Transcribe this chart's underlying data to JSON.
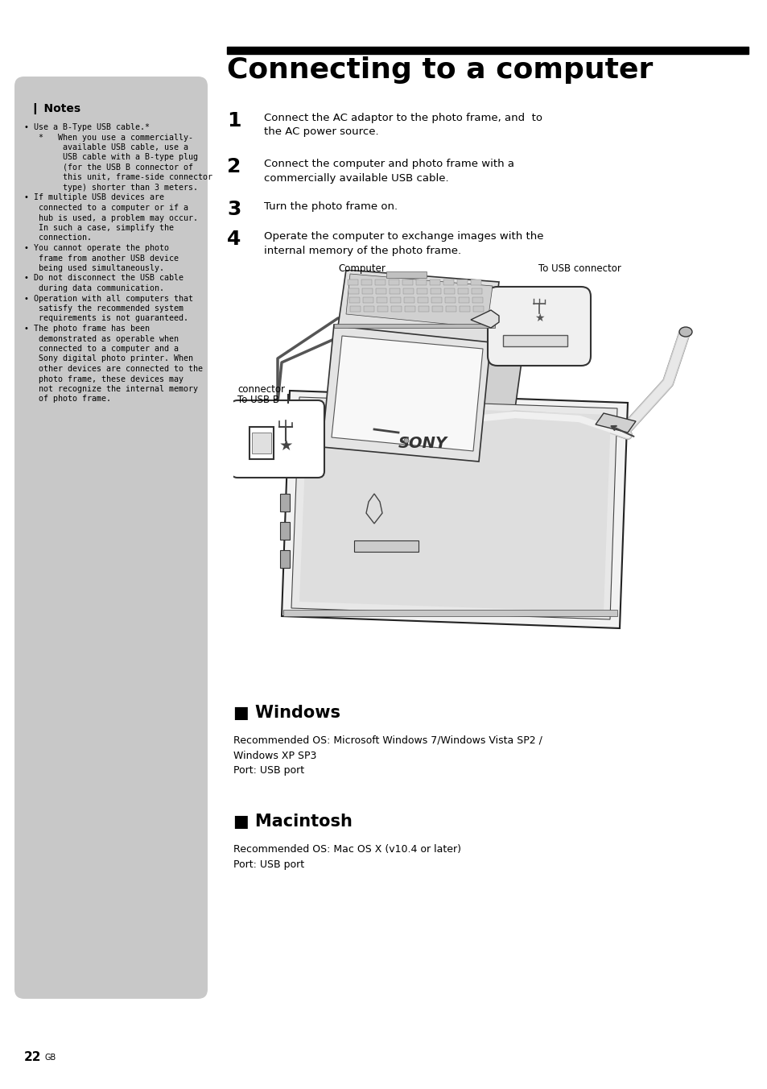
{
  "page_bg": "#ffffff",
  "sidebar_bg": "#c8c8c8",
  "title": "Connecting to a computer",
  "title_fontsize": 26,
  "notes_header": "❙ Notes",
  "notes_header_fontsize": 10,
  "notes_text_lines": [
    "• Use a B-Type USB cable.*",
    "   *   When you use a commercially-",
    "        available USB cable, use a",
    "        USB cable with a B-type plug",
    "        (for the USB B connector of",
    "        this unit, frame-side connector",
    "        type) shorter than 3 meters.",
    "• If multiple USB devices are",
    "   connected to a computer or if a",
    "   hub is used, a problem may occur.",
    "   In such a case, simplify the",
    "   connection.",
    "• You cannot operate the photo",
    "   frame from another USB device",
    "   being used simultaneously.",
    "• Do not disconnect the USB cable",
    "   during data communication.",
    "• Operation with all computers that",
    "   satisfy the recommended system",
    "   requirements is not guaranteed.",
    "• The photo frame has been",
    "   demonstrated as operable when",
    "   connected to a computer and a",
    "   Sony digital photo printer. When",
    "   other devices are connected to the",
    "   photo frame, these devices may",
    "   not recognize the internal memory",
    "   of photo frame."
  ],
  "notes_fontsize": 7.2,
  "steps": [
    {
      "num": "1",
      "text": "Connect the AC adaptor to the photo frame, and  to\nthe AC power source."
    },
    {
      "num": "2",
      "text": "Connect the computer and photo frame with a\ncommercially available USB cable."
    },
    {
      "num": "3",
      "text": "Turn the photo frame on."
    },
    {
      "num": "4",
      "text": "Operate the computer to exchange images with the\ninternal memory of the photo frame."
    }
  ],
  "step_num_fontsize": 18,
  "step_text_fontsize": 9.5,
  "windows_header": "■ Windows",
  "windows_header_fontsize": 15,
  "windows_text": "Recommended OS: Microsoft Windows 7/Windows Vista SP2 /\nWindows XP SP3\nPort: USB port",
  "windows_text_fontsize": 9,
  "mac_header": "■ Macintosh",
  "mac_header_fontsize": 15,
  "mac_text": "Recommended OS: Mac OS X (v10.4 or later)\nPort: USB port",
  "mac_text_fontsize": 9,
  "page_num": "22",
  "page_gb": "GB"
}
